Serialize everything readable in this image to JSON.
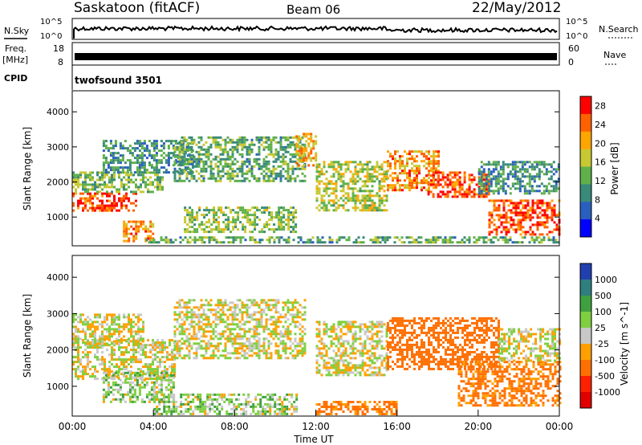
{
  "header": {
    "station": "Saskatoon (fitACF)",
    "beam": "Beam 06",
    "date": "22/May/2012"
  },
  "status_panels": {
    "nsky": {
      "label": "N.Sky",
      "right_label": "N.Search",
      "left_ticks": [
        "10^5",
        "10^0"
      ],
      "right_ticks": [
        "10^5",
        "10^0"
      ]
    },
    "freq": {
      "label_top": "Freq.",
      "label_unit": "[MHz]",
      "right_label": "Nave",
      "left_ticks": [
        "18",
        "8"
      ],
      "right_ticks": [
        "60",
        "0"
      ]
    },
    "cpid": {
      "label": "CPID",
      "value": "twofsound 3501"
    }
  },
  "chart_data": [
    {
      "type": "heatmap",
      "title": "",
      "xlabel": "",
      "ylabel": "Slant Range [km]",
      "xlim": [
        "00:00",
        "24:00"
      ],
      "ylim": [
        180,
        4600
      ],
      "y_ticks": [
        1000,
        2000,
        3000,
        4000
      ],
      "colorbar": {
        "label": "Power [dB]",
        "ticks": [
          4,
          8,
          12,
          16,
          20,
          24,
          28
        ],
        "range": [
          0,
          30
        ],
        "colors": [
          "#0000ff",
          "#2a5fbf",
          "#3a8a7a",
          "#5fb04a",
          "#c8c832",
          "#ffa500",
          "#ff6000",
          "#ff0000"
        ]
      },
      "regions": [
        {
          "from": 0,
          "to": 3.2,
          "r1": 1200,
          "r2": 1700,
          "level": 26
        },
        {
          "from": 0,
          "to": 4.5,
          "r1": 1700,
          "r2": 2300,
          "level": 14
        },
        {
          "from": 1.5,
          "to": 6.0,
          "r1": 2300,
          "r2": 3200,
          "level": 10
        },
        {
          "from": 2.5,
          "to": 4.0,
          "r1": 300,
          "r2": 900,
          "level": 22
        },
        {
          "from": 5.5,
          "to": 11.0,
          "r1": 600,
          "r2": 1300,
          "level": 14
        },
        {
          "from": 5.0,
          "to": 11.5,
          "r1": 2000,
          "r2": 3300,
          "level": 12
        },
        {
          "from": 11.0,
          "to": 12.0,
          "r1": 2500,
          "r2": 3400,
          "level": 20
        },
        {
          "from": 12.0,
          "to": 15.5,
          "r1": 1200,
          "r2": 2600,
          "level": 16
        },
        {
          "from": 15.5,
          "to": 18.0,
          "r1": 1800,
          "r2": 2900,
          "level": 22
        },
        {
          "from": 17.5,
          "to": 20.5,
          "r1": 1600,
          "r2": 2300,
          "level": 26
        },
        {
          "from": 20.5,
          "to": 24.0,
          "r1": 500,
          "r2": 1500,
          "level": 26
        },
        {
          "from": 3.5,
          "to": 24.0,
          "r1": 250,
          "r2": 450,
          "level": 12
        },
        {
          "from": 20.0,
          "to": 24.0,
          "r1": 1700,
          "r2": 2600,
          "level": 10
        }
      ]
    },
    {
      "type": "heatmap",
      "title": "",
      "xlabel": "Time UT",
      "ylabel": "Slant Range [km]",
      "xlim": [
        "00:00",
        "24:00"
      ],
      "ylim": [
        180,
        4600
      ],
      "x_ticks": [
        "00:00",
        "04:00",
        "08:00",
        "12:00",
        "16:00",
        "20:00",
        "00:00"
      ],
      "y_ticks": [
        1000,
        2000,
        3000,
        4000
      ],
      "colorbar": {
        "label": "Velocity [m s^-1]",
        "ticks": [
          1000,
          500,
          100,
          25,
          -25,
          -100,
          -500,
          -1000
        ],
        "colors": [
          "#2040b0",
          "#2f7f7f",
          "#3fa040",
          "#7fd040",
          "#c8c8c8",
          "#ffa000",
          "#ff7000",
          "#ff2000",
          "#e00000"
        ]
      },
      "regions": [
        {
          "from": 0,
          "to": 5.0,
          "r1": 1200,
          "r2": 2300,
          "level": 0
        },
        {
          "from": 1.5,
          "to": 5.0,
          "r1": 600,
          "r2": 1400,
          "level": 50
        },
        {
          "from": 5.0,
          "to": 11.5,
          "r1": 1800,
          "r2": 3400,
          "level": 0
        },
        {
          "from": 4.0,
          "to": 11.0,
          "r1": 250,
          "r2": 800,
          "level": 50
        },
        {
          "from": 12.0,
          "to": 15.5,
          "r1": 1300,
          "r2": 2800,
          "level": 0
        },
        {
          "from": 12.0,
          "to": 16.0,
          "r1": 250,
          "r2": 600,
          "level": -150
        },
        {
          "from": 15.5,
          "to": 21.0,
          "r1": 1500,
          "r2": 2900,
          "level": -300
        },
        {
          "from": 19.0,
          "to": 24.0,
          "r1": 500,
          "r2": 1700,
          "level": -150
        },
        {
          "from": 21.0,
          "to": 24.0,
          "r1": 1700,
          "r2": 2600,
          "level": 0
        },
        {
          "from": 0,
          "to": 3.5,
          "r1": 2200,
          "r2": 3000,
          "level": 0
        }
      ]
    }
  ]
}
